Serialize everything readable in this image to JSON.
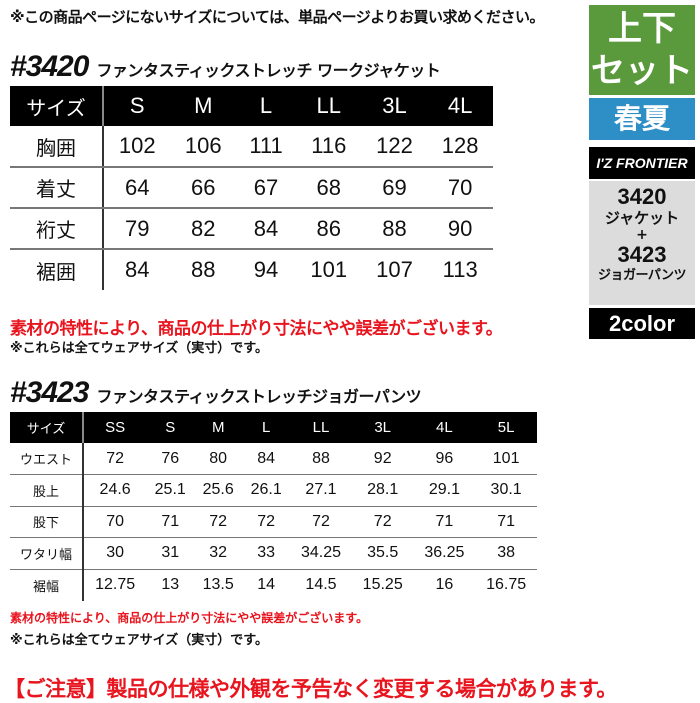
{
  "top_note": "※この商品ページにないサイズについては、単品ページよりお買い求めください。",
  "jacket": {
    "number": "#3420",
    "name": "ファンタスティックストレッチ ワークジャケット",
    "header": [
      "サイズ",
      "S",
      "M",
      "L",
      "LL",
      "3L",
      "4L"
    ],
    "rows": [
      [
        "胸囲",
        "102",
        "106",
        "111",
        "116",
        "122",
        "128"
      ],
      [
        "着丈",
        "64",
        "66",
        "67",
        "68",
        "69",
        "70"
      ],
      [
        "裄丈",
        "79",
        "82",
        "84",
        "86",
        "88",
        "90"
      ],
      [
        "裾囲",
        "84",
        "88",
        "94",
        "101",
        "107",
        "113"
      ]
    ],
    "note_red": "素材の特性により、商品の仕上がり寸法にやや誤差がございます。",
    "note_black": "※これらは全てウェアサイズ（実寸）です。"
  },
  "pants": {
    "number": "#3423",
    "name": "ファンタスティックストレッチジョガーパンツ",
    "header": [
      "サイズ",
      "SS",
      "S",
      "M",
      "L",
      "LL",
      "3L",
      "4L",
      "5L"
    ],
    "rows": [
      [
        "ウエスト",
        "72",
        "76",
        "80",
        "84",
        "88",
        "92",
        "96",
        "101"
      ],
      [
        "股上",
        "24.6",
        "25.1",
        "25.6",
        "26.1",
        "27.1",
        "28.1",
        "29.1",
        "30.1"
      ],
      [
        "股下",
        "70",
        "71",
        "72",
        "72",
        "72",
        "72",
        "71",
        "71"
      ],
      [
        "ワタリ幅",
        "30",
        "31",
        "32",
        "33",
        "34.25",
        "35.5",
        "36.25",
        "38"
      ],
      [
        "裾幅",
        "12.75",
        "13",
        "13.5",
        "14",
        "14.5",
        "15.25",
        "16",
        "16.75"
      ]
    ],
    "note_red": "素材の特性により、商品の仕上がり寸法にやや誤差がございます。",
    "note_black": "※これらは全てウェアサイズ（実寸）です。"
  },
  "bottom_notice": "【ご注意】製品の仕様や外観を予告なく変更する場合があります。",
  "side": {
    "set_line1": "上下",
    "set_line2": "セット",
    "season": "春夏",
    "brand": "I'Z FRONTIER",
    "item1_num": "3420",
    "item1_name": "ジャケット",
    "plus": "+",
    "item2_num": "3423",
    "item2_name": "ジョガーパンツ",
    "colors": "2color",
    "colors_hex": {
      "green": "#5b9a3c",
      "blue": "#2e8ec6",
      "grey": "#dcdcdc",
      "red": "#e8141e"
    }
  }
}
